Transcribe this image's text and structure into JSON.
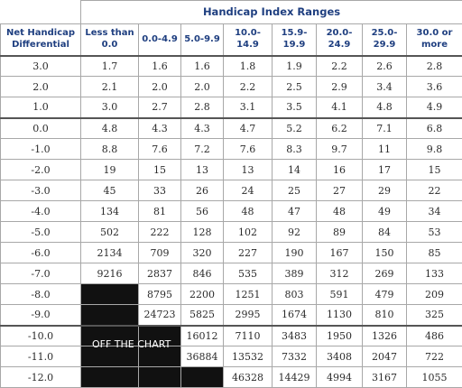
{
  "header": {
    "net_label": "Net Handicap Differential",
    "range_title": "Handicap Index Ranges",
    "columns": [
      "Less than 0.0",
      "0.0-4.9",
      "5.0-9.9",
      "10.0-14.9",
      "15.9-19.9",
      "20.0-24.9",
      "25.0-29.9",
      "30.0 or more"
    ]
  },
  "off_chart_label": "OFF THE CHART",
  "rows": [
    {
      "net": "3.0",
      "cells": [
        "1.7",
        "1.6",
        "1.6",
        "1.8",
        "1.9",
        "2.2",
        "2.6",
        "2.8"
      ]
    },
    {
      "net": "2.0",
      "cells": [
        "2.1",
        "2.0",
        "2.0",
        "2.2",
        "2.5",
        "2.9",
        "3.4",
        "3.6"
      ]
    },
    {
      "net": "1.0",
      "cells": [
        "3.0",
        "2.7",
        "2.8",
        "3.1",
        "3.5",
        "4.1",
        "4.8",
        "4.9"
      ]
    },
    {
      "net": "0.0",
      "cells": [
        "4.8",
        "4.3",
        "4.3",
        "4.7",
        "5.2",
        "6.2",
        "7.1",
        "6.8"
      ]
    },
    {
      "net": "-1.0",
      "cells": [
        "8.8",
        "7.6",
        "7.2",
        "7.6",
        "8.3",
        "9.7",
        "11",
        "9.8"
      ]
    },
    {
      "net": "-2.0",
      "cells": [
        "19",
        "15",
        "13",
        "13",
        "14",
        "16",
        "17",
        "15"
      ]
    },
    {
      "net": "-3.0",
      "cells": [
        "45",
        "33",
        "26",
        "24",
        "25",
        "27",
        "29",
        "22"
      ]
    },
    {
      "net": "-4.0",
      "cells": [
        "134",
        "81",
        "56",
        "48",
        "47",
        "48",
        "49",
        "34"
      ]
    },
    {
      "net": "-5.0",
      "cells": [
        "502",
        "222",
        "128",
        "102",
        "92",
        "89",
        "84",
        "53"
      ]
    },
    {
      "net": "-6.0",
      "cells": [
        "2134",
        "709",
        "320",
        "227",
        "190",
        "167",
        "150",
        "85"
      ]
    },
    {
      "net": "-7.0",
      "cells": [
        "9216",
        "2837",
        "846",
        "535",
        "389",
        "312",
        "269",
        "133"
      ]
    },
    {
      "net": "-8.0",
      "cells": [
        null,
        "8795",
        "2200",
        "1251",
        "803",
        "591",
        "479",
        "209"
      ]
    },
    {
      "net": "-9.0",
      "cells": [
        null,
        "24723",
        "5825",
        "2995",
        "1674",
        "1130",
        "810",
        "325"
      ]
    },
    {
      "net": "-10.0",
      "cells": [
        null,
        null,
        "16012",
        "7110",
        "3483",
        "1950",
        "1326",
        "486"
      ]
    },
    {
      "net": "-11.0",
      "cells": [
        null,
        null,
        "36884",
        "13532",
        "7332",
        "3408",
        "2047",
        "722"
      ]
    },
    {
      "net": "-12.0",
      "cells": [
        null,
        null,
        null,
        "46328",
        "14429",
        "4994",
        "3167",
        "1055"
      ]
    }
  ]
}
